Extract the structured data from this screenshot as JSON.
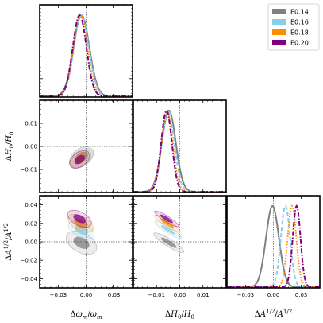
{
  "chart_data": {
    "type": "corner",
    "params": [
      {
        "key": "om",
        "label": "Δω_m/ω_m",
        "label_html": "Δ<tspan font-style='italic'>ω</tspan><tspan font-size='7' dy='3' font-style='italic'>m</tspan><tspan dy='-3'>/</tspan><tspan font-style='italic'>ω</tspan><tspan font-size='7' dy='3' font-style='italic'>m</tspan>",
        "lim": [
          -0.05,
          0.05
        ],
        "ticks": [
          -0.03,
          0.0,
          0.03
        ],
        "tick_labels": [
          "−0.03",
          "0.00",
          "0.03"
        ]
      },
      {
        "key": "H0",
        "label": "ΔH_0/H_0",
        "lim": [
          -0.02,
          0.02
        ],
        "ticks": [
          -0.01,
          0.0,
          0.01
        ],
        "tick_labels": [
          "−0.01",
          "0.00",
          "0.01"
        ]
      },
      {
        "key": "A",
        "label": "ΔA^{1/2}/A^{1/2}",
        "lim": [
          -0.05,
          0.05
        ],
        "ticks": [
          -0.04,
          -0.02,
          0.0,
          0.02,
          0.04
        ],
        "tick_labels": [
          "−0.04",
          "−0.02",
          "0.00",
          "0.02",
          "0.04"
        ],
        "tick_labels_x": [
          "−0.03",
          "0.00",
          "0.03"
        ],
        "ticks_x": [
          -0.03,
          0.0,
          0.03
        ]
      }
    ],
    "series": [
      {
        "name": "E0.14",
        "color": "#808080",
        "linestyle": "solid"
      },
      {
        "name": "E0.16",
        "color": "#87ceeb",
        "linestyle": "dashed"
      },
      {
        "name": "E0.18",
        "color": "#ff8c00",
        "linestyle": "dotted"
      },
      {
        "name": "E0.20",
        "color": "#800080",
        "linestyle": "dashdot"
      }
    ],
    "marginals": {
      "om": [
        {
          "mean": -0.005,
          "sigma": 0.0085
        },
        {
          "mean": -0.005,
          "sigma": 0.008
        },
        {
          "mean": -0.006,
          "sigma": 0.0075
        },
        {
          "mean": -0.007,
          "sigma": 0.0073
        }
      ],
      "H0": [
        {
          "mean": -0.0047,
          "sigma": 0.003
        },
        {
          "mean": -0.005,
          "sigma": 0.0027
        },
        {
          "mean": -0.0054,
          "sigma": 0.0024
        },
        {
          "mean": -0.0057,
          "sigma": 0.0023
        }
      ],
      "A": [
        {
          "mean": -0.001,
          "sigma": 0.007
        },
        {
          "mean": 0.013,
          "sigma": 0.005
        },
        {
          "mean": 0.02,
          "sigma": 0.0047
        },
        {
          "mean": 0.025,
          "sigma": 0.0042
        }
      ]
    },
    "contours_H0_vs_om": [
      {
        "cx": -0.005,
        "cy": -0.0047,
        "a": 0.0085,
        "b": 0.0022,
        "angle_deg": 36
      },
      {
        "cx": -0.005,
        "cy": -0.005,
        "a": 0.008,
        "b": 0.002,
        "angle_deg": 36
      },
      {
        "cx": -0.006,
        "cy": -0.0054,
        "a": 0.0075,
        "b": 0.0019,
        "angle_deg": 36
      },
      {
        "cx": -0.007,
        "cy": -0.0057,
        "a": 0.0072,
        "b": 0.0018,
        "angle_deg": 36
      }
    ],
    "contours_A_vs_om": [
      {
        "cx": -0.005,
        "cy": -0.001,
        "a": 0.0105,
        "b": 0.0062,
        "angle_deg": -28
      },
      {
        "cx": -0.005,
        "cy": 0.013,
        "a": 0.009,
        "b": 0.0048,
        "angle_deg": -28
      },
      {
        "cx": -0.006,
        "cy": 0.02,
        "a": 0.0087,
        "b": 0.0045,
        "angle_deg": -28
      },
      {
        "cx": -0.007,
        "cy": 0.025,
        "a": 0.0083,
        "b": 0.0043,
        "angle_deg": -28
      }
    ],
    "contours_A_vs_H0": [
      {
        "cx": -0.0047,
        "cy": -0.001,
        "a": 0.0045,
        "b": 0.0024,
        "angle_deg": -32
      },
      {
        "cx": -0.005,
        "cy": 0.013,
        "a": 0.004,
        "b": 0.002,
        "angle_deg": -32
      },
      {
        "cx": -0.0054,
        "cy": 0.02,
        "a": 0.0038,
        "b": 0.0019,
        "angle_deg": -32
      },
      {
        "cx": -0.0057,
        "cy": 0.025,
        "a": 0.0036,
        "b": 0.0018,
        "angle_deg": -32
      }
    ],
    "legend": {
      "position": "top-right",
      "entries": [
        "E0.14",
        "E0.16",
        "E0.18",
        "E0.20"
      ]
    },
    "reference_lines": "dotted lines at zero",
    "grid": false
  }
}
